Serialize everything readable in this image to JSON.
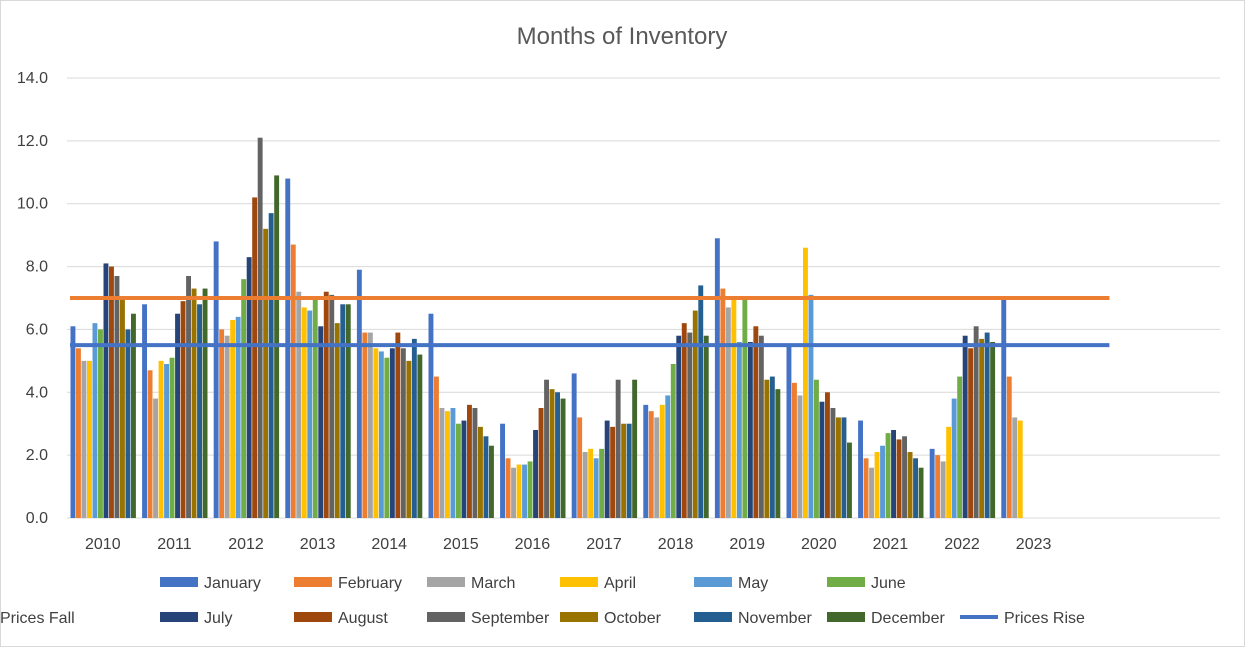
{
  "chart_data": {
    "type": "bar",
    "title": "Months of Inventory",
    "xlabel": "",
    "ylabel": "",
    "ylim": [
      0,
      14
    ],
    "yticks": [
      "0.0",
      "2.0",
      "4.0",
      "6.0",
      "8.0",
      "10.0",
      "12.0",
      "14.0"
    ],
    "grid": true,
    "legend_position": "bottom",
    "categories": [
      "2010",
      "2011",
      "2012",
      "2013",
      "2014",
      "2015",
      "2016",
      "2017",
      "2018",
      "2019",
      "2020",
      "2021",
      "2022",
      "2023"
    ],
    "series": [
      {
        "name": "January",
        "color": "#4472C4",
        "values": [
          6.1,
          6.8,
          8.8,
          10.8,
          7.9,
          6.5,
          3.0,
          4.6,
          3.6,
          8.9,
          5.5,
          3.1,
          2.2,
          7.0
        ]
      },
      {
        "name": "February",
        "color": "#ED7D31",
        "values": [
          5.4,
          4.7,
          6.0,
          8.7,
          5.9,
          4.5,
          1.9,
          3.2,
          3.4,
          7.3,
          4.3,
          1.9,
          2.0,
          4.5
        ]
      },
      {
        "name": "March",
        "color": "#A5A5A5",
        "values": [
          5.0,
          3.8,
          5.8,
          7.2,
          5.9,
          3.5,
          1.6,
          2.1,
          3.2,
          6.7,
          3.9,
          1.6,
          1.8,
          3.2
        ]
      },
      {
        "name": "April",
        "color": "#FFC000",
        "values": [
          5.0,
          5.0,
          6.3,
          6.7,
          5.4,
          3.4,
          1.7,
          2.2,
          3.6,
          7.0,
          8.6,
          2.1,
          2.9,
          3.1
        ]
      },
      {
        "name": "May",
        "color": "#5B9BD5",
        "values": [
          6.2,
          4.9,
          6.4,
          6.6,
          5.3,
          3.5,
          1.7,
          1.9,
          3.9,
          5.6,
          7.1,
          2.3,
          3.8,
          null
        ]
      },
      {
        "name": "June",
        "color": "#70AD47",
        "values": [
          6.0,
          5.1,
          7.6,
          7.0,
          5.1,
          3.0,
          1.8,
          2.2,
          4.9,
          7.0,
          4.4,
          2.7,
          4.5,
          null
        ]
      },
      {
        "name": "July",
        "color": "#264478",
        "values": [
          8.1,
          6.5,
          8.3,
          6.1,
          5.4,
          3.1,
          2.8,
          3.1,
          5.8,
          5.6,
          3.7,
          2.8,
          5.8,
          null
        ]
      },
      {
        "name": "August",
        "color": "#9E480E",
        "values": [
          8.0,
          6.9,
          10.2,
          7.2,
          5.9,
          3.6,
          3.5,
          2.9,
          6.2,
          6.1,
          4.0,
          2.5,
          5.4,
          null
        ]
      },
      {
        "name": "September",
        "color": "#636363",
        "values": [
          7.7,
          7.7,
          12.1,
          7.1,
          5.4,
          3.5,
          4.4,
          4.4,
          5.9,
          5.8,
          3.5,
          2.6,
          6.1,
          null
        ]
      },
      {
        "name": "October",
        "color": "#997300",
        "values": [
          7.0,
          7.3,
          9.2,
          6.2,
          5.0,
          2.9,
          4.1,
          3.0,
          6.6,
          4.4,
          3.2,
          2.1,
          5.7,
          null
        ]
      },
      {
        "name": "November",
        "color": "#255E91",
        "values": [
          6.0,
          6.8,
          9.7,
          6.8,
          5.7,
          2.6,
          4.0,
          3.0,
          7.4,
          4.5,
          3.2,
          1.9,
          5.9,
          null
        ]
      },
      {
        "name": "December",
        "color": "#43682B",
        "values": [
          6.5,
          7.3,
          10.9,
          6.8,
          5.2,
          2.3,
          3.8,
          4.4,
          5.8,
          4.1,
          2.4,
          1.6,
          5.6,
          null
        ]
      }
    ],
    "reference_lines": [
      {
        "name": "Prices Rise",
        "color": "#4472C4",
        "value": 5.5
      },
      {
        "name": "Prices Fall",
        "color": "#ED7D31",
        "value": 7.0
      }
    ]
  }
}
